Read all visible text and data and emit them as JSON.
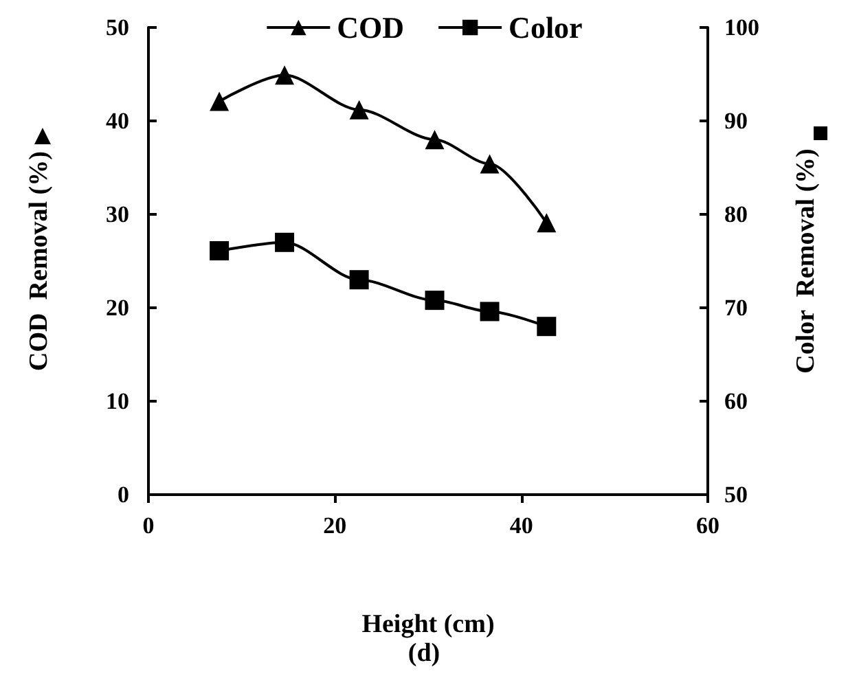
{
  "chart_data": {
    "type": "line",
    "xlabel": "Height (cm)",
    "ylabel": "COD  Removal (%)",
    "y2label": "Color  Removal (%)",
    "annotations": [
      "(d)"
    ],
    "x": [
      7.6,
      14.6,
      22.6,
      30.7,
      36.6,
      42.7
    ],
    "series": [
      {
        "name": "COD",
        "color": "#000000",
        "marker": "triangle",
        "values": [
          42.1,
          44.9,
          41.2,
          38.0,
          35.4,
          29.1
        ]
      },
      {
        "name": "Color",
        "color": "#000000",
        "marker": "square",
        "axis": "y2",
        "values": [
          76.1,
          77.0,
          73.0,
          70.8,
          69.6,
          68.0
        ]
      }
    ],
    "xlim": [
      0,
      60
    ],
    "xticks": [
      0,
      20,
      40,
      60
    ],
    "ylim": [
      0,
      50
    ],
    "yticks": [
      0,
      10,
      20,
      30,
      40,
      50
    ],
    "y2lim": [
      50,
      100
    ],
    "y2ticks": [
      50,
      60,
      70,
      80,
      90,
      100
    ],
    "legend": "top",
    "grid": false,
    "line_style": "solid"
  }
}
